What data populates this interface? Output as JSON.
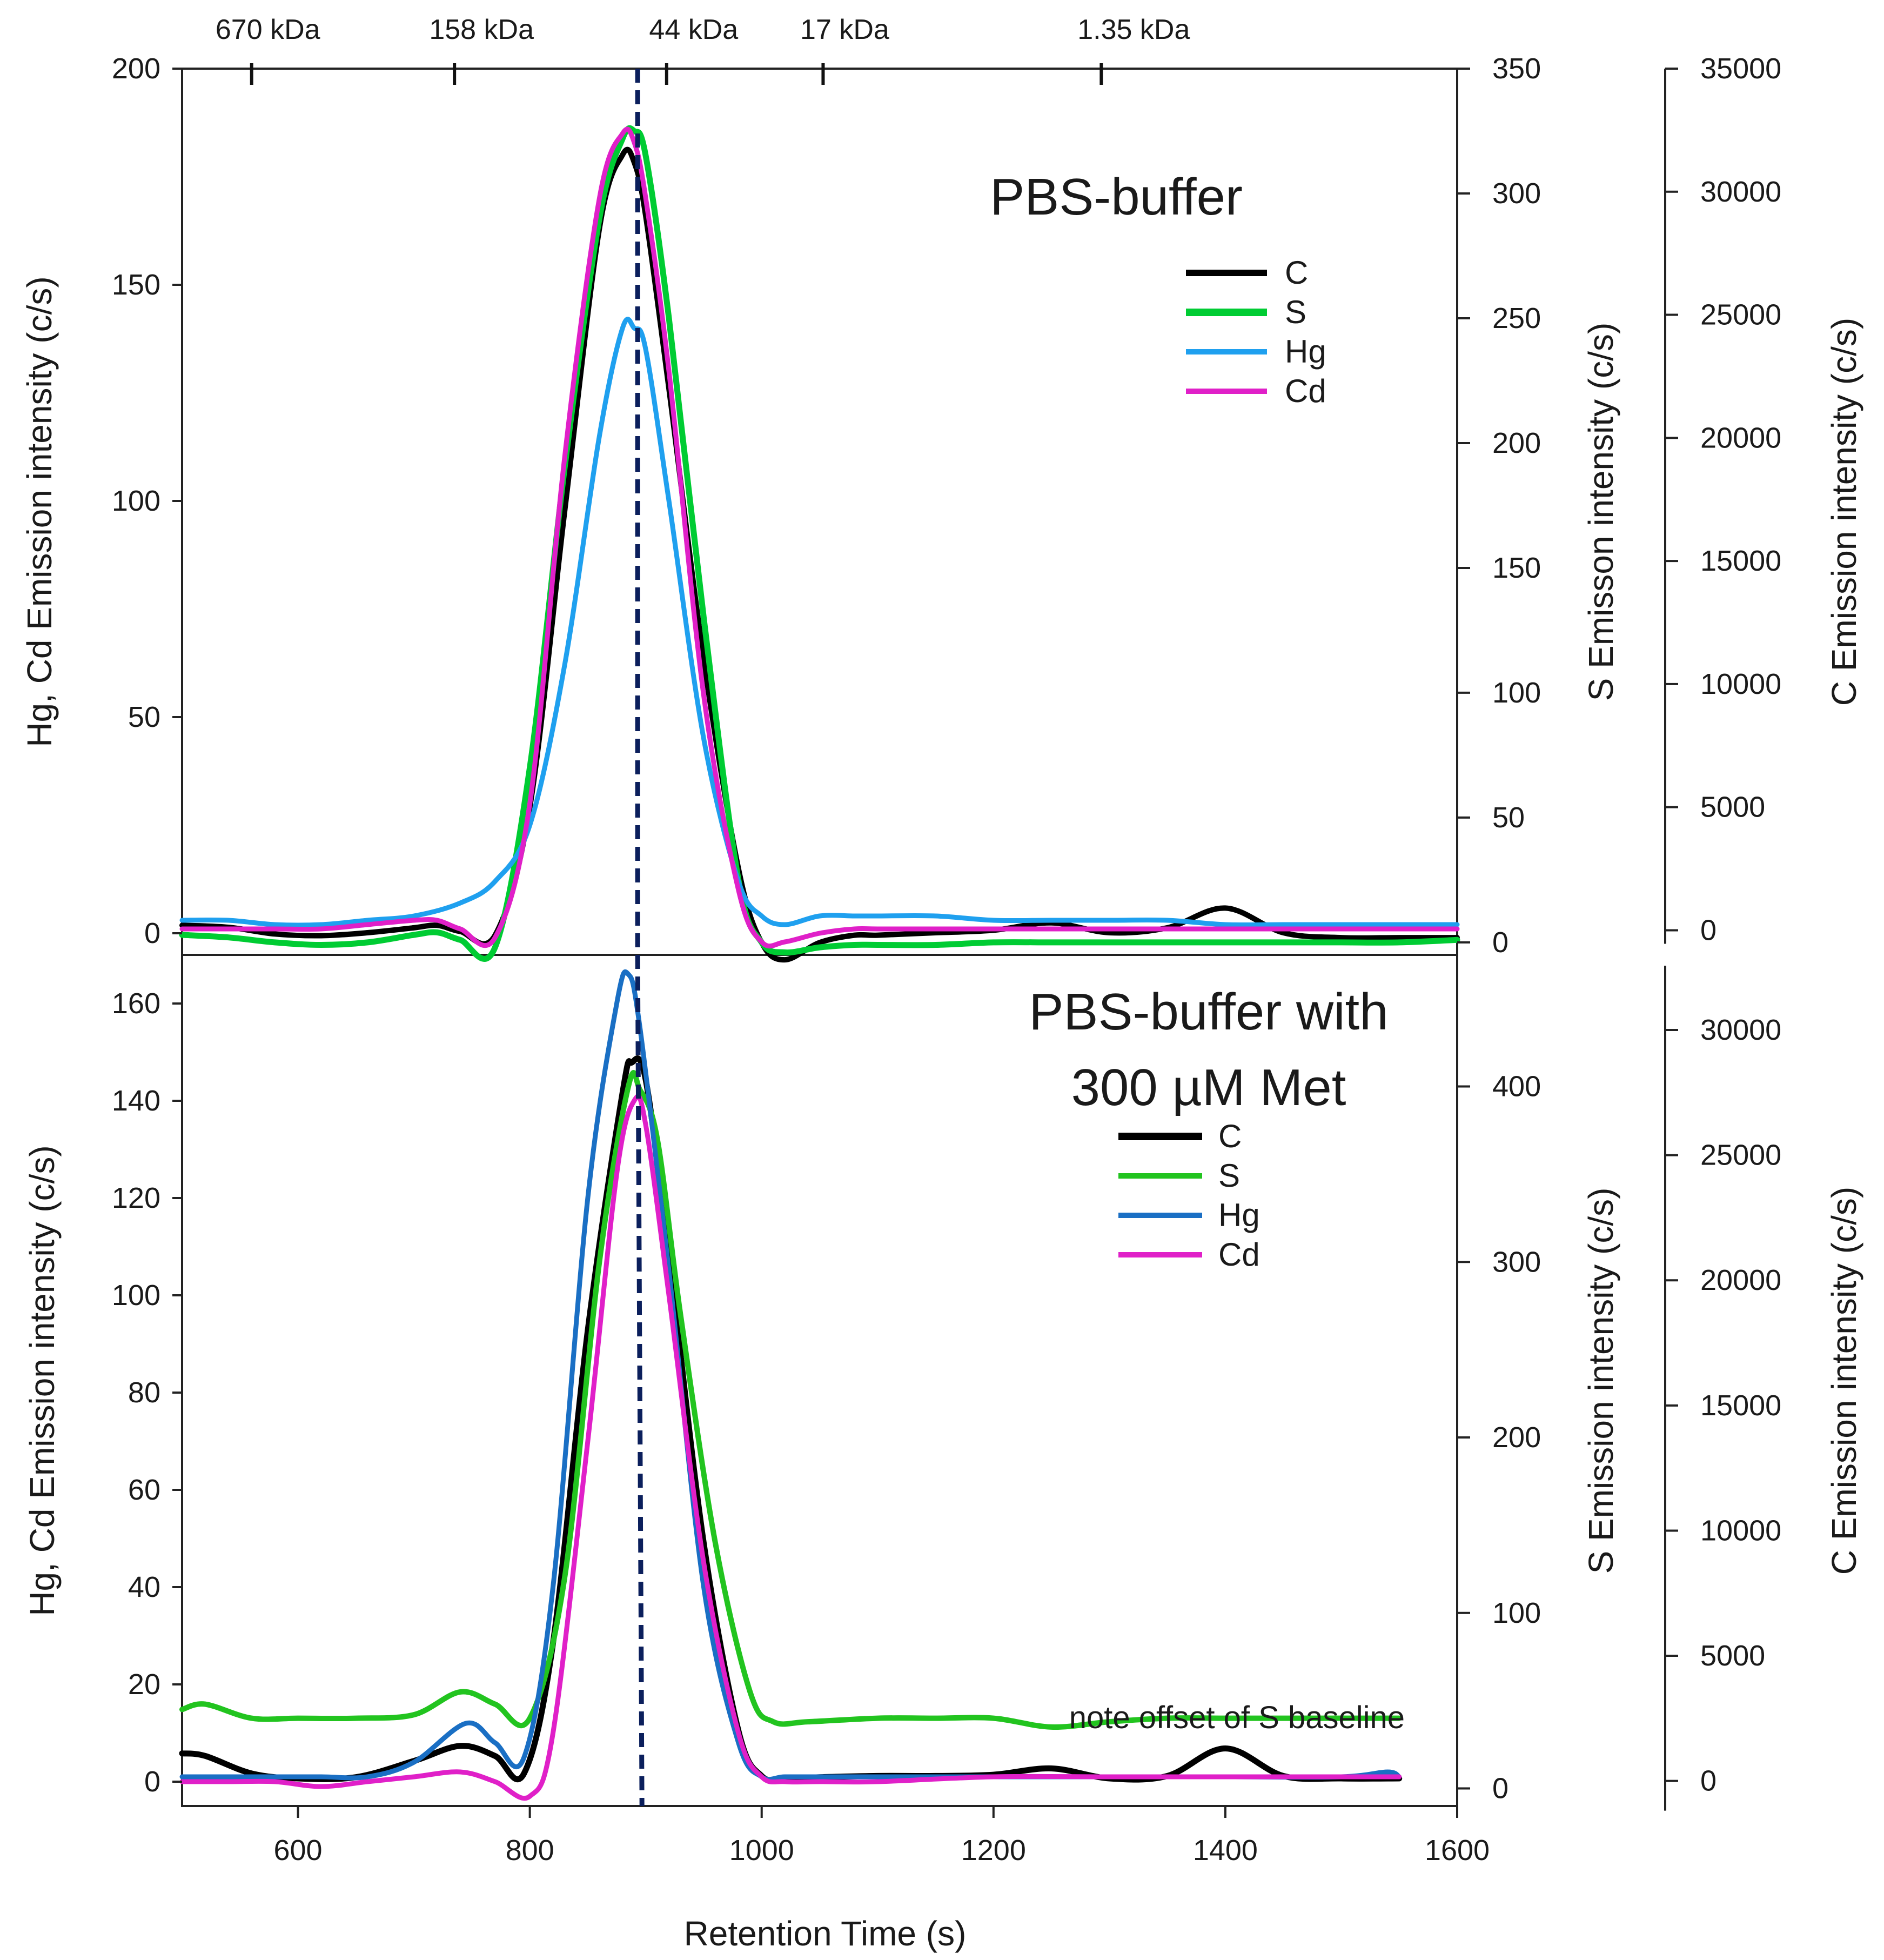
{
  "chart_data": [
    {
      "id": "top",
      "type": "line",
      "title": "PBS-buffer",
      "xlabel": "Retention Time (s)",
      "xlim": [
        500,
        1600
      ],
      "ylabel_left": "Hg, Cd Emission intensity (c/s)",
      "ylabel_s": "S Emisson intensity (c/s)",
      "ylabel_c": "C Emission intensity (c/s)",
      "left_axis": {
        "min": -5,
        "max": 200,
        "ticks": [
          0,
          50,
          100,
          150,
          200
        ]
      },
      "s_axis": {
        "min": -5,
        "max": 350,
        "ticks": [
          0,
          50,
          100,
          150,
          200,
          250,
          300,
          350
        ]
      },
      "c_axis": {
        "min": -1000,
        "max": 35000,
        "ticks": [
          0,
          5000,
          10000,
          15000,
          20000,
          25000,
          30000,
          35000
        ]
      },
      "legend": [
        "C",
        "S",
        "Hg",
        "Cd"
      ],
      "series": [
        {
          "name": "C",
          "axis": "c",
          "color": "#000000",
          "width": 10,
          "x": [
            500,
            540,
            580,
            620,
            660,
            700,
            720,
            740,
            770,
            800,
            830,
            860,
            880,
            890,
            900,
            920,
            950,
            980,
            1000,
            1020,
            1050,
            1080,
            1100,
            1150,
            1200,
            1250,
            1300,
            1350,
            1400,
            1450,
            1500,
            1550,
            1600
          ],
          "y": [
            200,
            120,
            -150,
            -220,
            -100,
            100,
            200,
            -50,
            -200,
            5000,
            17000,
            28500,
            31500,
            31200,
            29000,
            22000,
            11000,
            2500,
            -500,
            -1200,
            -500,
            -200,
            -200,
            -100,
            0,
            300,
            -100,
            100,
            900,
            -100,
            -300,
            -300,
            -300
          ]
        },
        {
          "name": "S",
          "axis": "s",
          "color": "#00cc33",
          "width": 11,
          "x": [
            500,
            540,
            580,
            620,
            660,
            700,
            720,
            740,
            770,
            800,
            830,
            860,
            880,
            890,
            900,
            920,
            950,
            980,
            1000,
            1020,
            1050,
            1080,
            1100,
            1150,
            1200,
            1250,
            1300,
            1350,
            1400,
            1450,
            1500,
            1550,
            1600
          ],
          "y": [
            3,
            2,
            0,
            -1,
            0,
            3,
            4,
            1,
            -2,
            70,
            190,
            290,
            322,
            325,
            315,
            250,
            130,
            25,
            0,
            -4,
            -2,
            -1,
            -1,
            -1,
            0,
            0,
            0,
            0,
            0,
            0,
            0,
            0,
            1
          ]
        },
        {
          "name": "Hg",
          "axis": "left",
          "color": "#1fa0ef",
          "width": 9,
          "x": [
            500,
            540,
            580,
            620,
            660,
            700,
            740,
            770,
            800,
            830,
            860,
            880,
            890,
            900,
            920,
            950,
            980,
            1000,
            1020,
            1050,
            1080,
            1100,
            1150,
            1200,
            1250,
            1300,
            1350,
            1400,
            1450,
            1500,
            1550,
            1600
          ],
          "y": [
            3,
            3,
            2,
            2,
            3,
            4,
            7,
            12,
            25,
            62,
            115,
            140,
            140,
            135,
            100,
            45,
            12,
            4,
            2,
            4,
            4,
            4,
            4,
            3,
            3,
            3,
            3,
            2,
            2,
            2,
            2,
            2
          ]
        },
        {
          "name": "Cd",
          "axis": "left",
          "color": "#e020c8",
          "width": 9,
          "x": [
            500,
            540,
            580,
            620,
            660,
            700,
            720,
            740,
            770,
            800,
            830,
            860,
            880,
            890,
            900,
            920,
            950,
            980,
            1000,
            1020,
            1050,
            1080,
            1100,
            1150,
            1200,
            1250,
            1300,
            1350,
            1400,
            1450,
            1500,
            1550,
            1600
          ],
          "y": [
            1,
            1,
            1,
            1,
            2,
            3,
            3,
            1,
            -1,
            30,
            110,
            170,
            185,
            183,
            170,
            130,
            55,
            10,
            -2,
            -2,
            0,
            1,
            1,
            1,
            1,
            1,
            1,
            1,
            1,
            1,
            1,
            1,
            1
          ]
        }
      ],
      "annotations": [
        {
          "type": "vline",
          "x": 893,
          "color": "#0b1f5c",
          "style": "dashed"
        }
      ],
      "mw_markers": [
        {
          "label": "670 kDa",
          "x": 560
        },
        {
          "label": "158 kDa",
          "x": 735
        },
        {
          "label": "44 kDa",
          "x": 918
        },
        {
          "label": "17 kDa",
          "x": 1053
        },
        {
          "label": "1.35 kDa",
          "x": 1293
        }
      ]
    },
    {
      "id": "bottom",
      "type": "line",
      "title": "PBS-buffer with 300 µM Met",
      "title_lines": [
        "PBS-buffer with",
        "300 µM Met"
      ],
      "xlabel": "Retention Time (s)",
      "xlim": [
        500,
        1600
      ],
      "x_ticks": [
        600,
        800,
        1000,
        1200,
        1400,
        1600
      ],
      "ylabel_left": "Hg, Cd Emission intensity (c/s)",
      "ylabel_s": "S Emission intensity (c/s)",
      "ylabel_c": "C Emission intensity (c/s)",
      "left_axis": {
        "min": -5,
        "max": 170,
        "ticks": [
          0,
          20,
          40,
          60,
          80,
          100,
          120,
          140,
          160
        ]
      },
      "s_axis": {
        "min": -10,
        "max": 475,
        "ticks": [
          0,
          100,
          200,
          300,
          400
        ]
      },
      "c_axis": {
        "min": -1000,
        "max": 33000,
        "ticks": [
          0,
          5000,
          10000,
          15000,
          20000,
          25000,
          30000
        ]
      },
      "legend": [
        "C",
        "S",
        "Hg",
        "Cd"
      ],
      "note": "note offset of S baseline",
      "series": [
        {
          "name": "C",
          "axis": "c",
          "color": "#000000",
          "width": 11,
          "x": [
            500,
            520,
            560,
            600,
            650,
            700,
            740,
            770,
            795,
            820,
            850,
            880,
            888,
            900,
            920,
            950,
            980,
            1000,
            1020,
            1050,
            1100,
            1150,
            1200,
            1250,
            1300,
            1350,
            1400,
            1450,
            1500,
            1550
          ],
          "y": [
            1100,
            1000,
            300,
            100,
            150,
            800,
            1400,
            1000,
            300,
            5500,
            18000,
            27500,
            28700,
            28000,
            21000,
            9500,
            2000,
            200,
            100,
            150,
            200,
            200,
            250,
            500,
            100,
            200,
            1300,
            200,
            100,
            100
          ]
        },
        {
          "name": "S",
          "axis": "s",
          "color": "#22c41f",
          "width": 10,
          "x": [
            500,
            520,
            560,
            600,
            650,
            700,
            740,
            770,
            800,
            830,
            860,
            885,
            895,
            910,
            930,
            960,
            990,
            1010,
            1040,
            1100,
            1150,
            1200,
            1250,
            1300,
            1350,
            1400,
            1450,
            1500,
            1550
          ],
          "y": [
            45,
            48,
            40,
            40,
            40,
            42,
            55,
            48,
            40,
            120,
            300,
            400,
            398,
            370,
            270,
            140,
            55,
            38,
            38,
            40,
            40,
            40,
            35,
            38,
            40,
            40,
            40,
            40,
            40
          ]
        },
        {
          "name": "Hg",
          "axis": "left",
          "color": "#1a6fc4",
          "width": 9,
          "x": [
            500,
            540,
            580,
            620,
            660,
            700,
            745,
            770,
            795,
            820,
            850,
            875,
            885,
            895,
            920,
            950,
            980,
            1000,
            1020,
            1050,
            1100,
            1200,
            1300,
            1400,
            1500,
            1540,
            1550
          ],
          "y": [
            1,
            1,
            1,
            1,
            1,
            4,
            12,
            8,
            5,
            40,
            120,
            160,
            166,
            155,
            105,
            40,
            8,
            1,
            1,
            1,
            1,
            1,
            1,
            1,
            1,
            2,
            1
          ]
        },
        {
          "name": "Cd",
          "axis": "left",
          "color": "#e020c8",
          "width": 9,
          "x": [
            500,
            540,
            580,
            620,
            660,
            700,
            740,
            770,
            800,
            820,
            850,
            875,
            890,
            900,
            920,
            950,
            980,
            1000,
            1020,
            1050,
            1100,
            1200,
            1300,
            1400,
            1500,
            1550
          ],
          "y": [
            0,
            0,
            0,
            -1,
            0,
            1,
            2,
            0,
            -3,
            10,
            70,
            125,
            140,
            135,
            100,
            45,
            10,
            1,
            0,
            0,
            0,
            1,
            1,
            1,
            1,
            1
          ]
        }
      ],
      "annotations": [
        {
          "type": "vline",
          "x": 893,
          "color": "#0b1f5c",
          "style": "dashed"
        }
      ]
    }
  ]
}
